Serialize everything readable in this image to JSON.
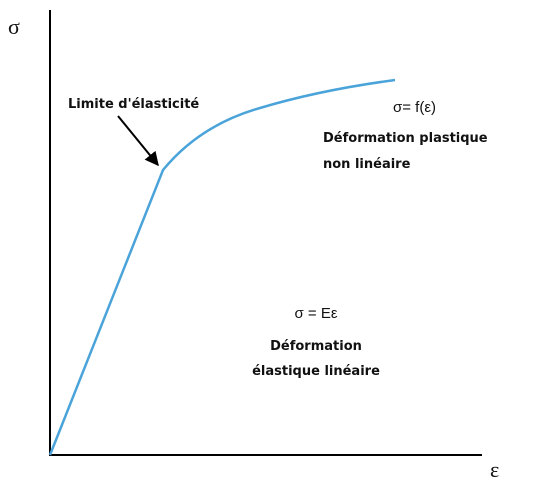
{
  "axes": {
    "y_label": "σ",
    "x_label": "ε"
  },
  "annotations": {
    "yield": "Limite d'élasticité",
    "plastic_equation": "σ= f(ε)",
    "plastic_line1": "Déformation plastique",
    "plastic_line2": "non linéaire",
    "elastic_equation": "σ = Eε",
    "elastic_line1": "Déformation",
    "elastic_line2": "élastique linéaire"
  }
}
